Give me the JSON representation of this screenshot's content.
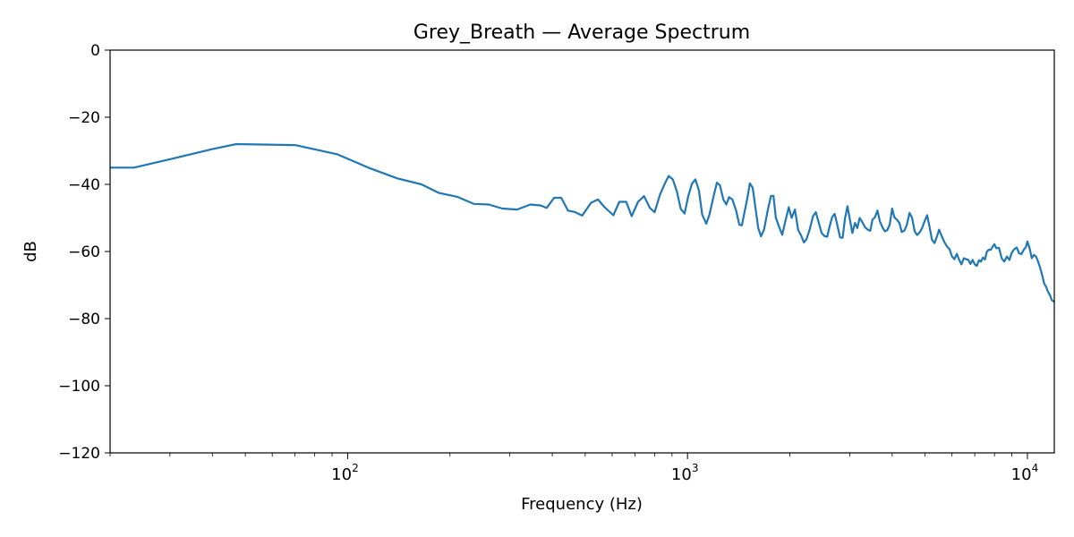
{
  "chart_data": {
    "type": "line",
    "title": "Grey_Breath — Average Spectrum",
    "xlabel": "Frequency (Hz)",
    "ylabel": "dB",
    "xscale": "log",
    "xlim": [
      20,
      12000
    ],
    "ylim": [
      -120,
      0
    ],
    "grid": false,
    "line_color": "#1f77b4",
    "y_ticks": [
      0,
      -20,
      -40,
      -60,
      -80,
      -100,
      -120
    ],
    "y_tick_labels": [
      "0",
      "−20",
      "−40",
      "−60",
      "−80",
      "−100",
      "−120"
    ],
    "x_major_ticks": [
      {
        "value": 100,
        "base": "10",
        "exp": "2"
      },
      {
        "value": 1000,
        "base": "10",
        "exp": "3"
      },
      {
        "value": 10000,
        "base": "10",
        "exp": "4"
      }
    ],
    "series": [
      {
        "name": "Average Spectrum",
        "points": [
          [
            20,
            -35
          ],
          [
            23.5,
            -35
          ],
          [
            30,
            -32.5
          ],
          [
            40,
            -29.5
          ],
          [
            47,
            -28
          ],
          [
            70,
            -28.3
          ],
          [
            93,
            -31
          ],
          [
            115,
            -35
          ],
          [
            140,
            -38.2
          ],
          [
            165,
            -40
          ],
          [
            185,
            -42.5
          ],
          [
            210,
            -43.7
          ],
          [
            235,
            -45.8
          ],
          [
            260,
            -46
          ],
          [
            285,
            -47.2
          ],
          [
            315,
            -47.5
          ],
          [
            345,
            -46
          ],
          [
            370,
            -46.3
          ],
          [
            385,
            -47
          ],
          [
            405,
            -44
          ],
          [
            425,
            -44
          ],
          [
            445,
            -47.8
          ],
          [
            465,
            -48.2
          ],
          [
            490,
            -49.3
          ],
          [
            520,
            -45.5
          ],
          [
            545,
            -44.5
          ],
          [
            570,
            -46.8
          ],
          [
            605,
            -49.2
          ],
          [
            630,
            -45.2
          ],
          [
            660,
            -45.2
          ],
          [
            685,
            -49.5
          ],
          [
            715,
            -45.2
          ],
          [
            745,
            -43.5
          ],
          [
            775,
            -47
          ],
          [
            800,
            -48.3
          ],
          [
            830,
            -43
          ],
          [
            860,
            -39.5
          ],
          [
            880,
            -37.5
          ],
          [
            905,
            -38.5
          ],
          [
            930,
            -42
          ],
          [
            955,
            -47.3
          ],
          [
            980,
            -48.7
          ],
          [
            1005,
            -43.5
          ],
          [
            1030,
            -39.8
          ],
          [
            1055,
            -38.5
          ],
          [
            1080,
            -41.8
          ],
          [
            1105,
            -49
          ],
          [
            1135,
            -51.7
          ],
          [
            1160,
            -49
          ],
          [
            1190,
            -44
          ],
          [
            1220,
            -39.5
          ],
          [
            1245,
            -40.2
          ],
          [
            1275,
            -44.5
          ],
          [
            1300,
            -46
          ],
          [
            1325,
            -43.8
          ],
          [
            1355,
            -44.5
          ],
          [
            1390,
            -47.8
          ],
          [
            1420,
            -52
          ],
          [
            1445,
            -52.2
          ],
          [
            1470,
            -48.5
          ],
          [
            1500,
            -44
          ],
          [
            1525,
            -39.7
          ],
          [
            1555,
            -41
          ],
          [
            1585,
            -47
          ],
          [
            1615,
            -53
          ],
          [
            1645,
            -55.5
          ],
          [
            1680,
            -53.5
          ],
          [
            1720,
            -48
          ],
          [
            1760,
            -43.4
          ],
          [
            1790,
            -43.4
          ],
          [
            1820,
            -50
          ],
          [
            1865,
            -53
          ],
          [
            1900,
            -55
          ],
          [
            1940,
            -51
          ],
          [
            1985,
            -46.8
          ],
          [
            2025,
            -50
          ],
          [
            2070,
            -47.5
          ],
          [
            2115,
            -53.5
          ],
          [
            2160,
            -55.3
          ],
          [
            2200,
            -57.3
          ],
          [
            2240,
            -56.3
          ],
          [
            2290,
            -53.3
          ],
          [
            2340,
            -49.5
          ],
          [
            2385,
            -48.3
          ],
          [
            2430,
            -51.2
          ],
          [
            2480,
            -54.5
          ],
          [
            2530,
            -55.4
          ],
          [
            2575,
            -55.6
          ],
          [
            2620,
            -52.5
          ],
          [
            2665,
            -49.7
          ],
          [
            2710,
            -48.8
          ],
          [
            2755,
            -51.8
          ],
          [
            2810,
            -55.8
          ],
          [
            2860,
            -55.9
          ],
          [
            2905,
            -50.2
          ],
          [
            2955,
            -46.5
          ],
          [
            3005,
            -50.5
          ],
          [
            3055,
            -54.5
          ],
          [
            3110,
            -51.5
          ],
          [
            3160,
            -53
          ],
          [
            3210,
            -50
          ],
          [
            3270,
            -51.3
          ],
          [
            3330,
            -52.8
          ],
          [
            3390,
            -53.5
          ],
          [
            3450,
            -53.8
          ],
          [
            3500,
            -50.5
          ],
          [
            3560,
            -49.8
          ],
          [
            3620,
            -47.8
          ],
          [
            3680,
            -51
          ],
          [
            3750,
            -52.9
          ],
          [
            3810,
            -54
          ],
          [
            3870,
            -53.6
          ],
          [
            3935,
            -52
          ],
          [
            4000,
            -47.2
          ],
          [
            4060,
            -49.8
          ],
          [
            4130,
            -50.5
          ],
          [
            4200,
            -51.5
          ],
          [
            4270,
            -54.2
          ],
          [
            4350,
            -53.7
          ],
          [
            4420,
            -52
          ],
          [
            4500,
            -48.5
          ],
          [
            4580,
            -50
          ],
          [
            4660,
            -54
          ],
          [
            4740,
            -55.1
          ],
          [
            4820,
            -54.3
          ],
          [
            4900,
            -53
          ],
          [
            4980,
            -51
          ],
          [
            5070,
            -49.2
          ],
          [
            5150,
            -52.5
          ],
          [
            5240,
            -56.5
          ],
          [
            5330,
            -57.5
          ],
          [
            5420,
            -55.5
          ],
          [
            5500,
            -53.5
          ],
          [
            5600,
            -55.5
          ],
          [
            5700,
            -57.2
          ],
          [
            5800,
            -58.5
          ],
          [
            5900,
            -59.3
          ],
          [
            6000,
            -61.5
          ],
          [
            6100,
            -62.3
          ],
          [
            6200,
            -60.7
          ],
          [
            6300,
            -62.5
          ],
          [
            6400,
            -63.8
          ],
          [
            6500,
            -62
          ],
          [
            6600,
            -62.3
          ],
          [
            6700,
            -62.5
          ],
          [
            6800,
            -63.7
          ],
          [
            6900,
            -62.5
          ],
          [
            7000,
            -63.8
          ],
          [
            7100,
            -64.3
          ],
          [
            7200,
            -62.6
          ],
          [
            7300,
            -63
          ],
          [
            7400,
            -61.8
          ],
          [
            7500,
            -62.4
          ],
          [
            7600,
            -60
          ],
          [
            7700,
            -59.5
          ],
          [
            7800,
            -59.5
          ],
          [
            7900,
            -58.6
          ],
          [
            8000,
            -57.8
          ],
          [
            8100,
            -59
          ],
          [
            8250,
            -58.9
          ],
          [
            8400,
            -62
          ],
          [
            8550,
            -63
          ],
          [
            8700,
            -61.5
          ],
          [
            8850,
            -62.5
          ],
          [
            9000,
            -60.3
          ],
          [
            9150,
            -59.3
          ],
          [
            9300,
            -58.8
          ],
          [
            9450,
            -60.5
          ],
          [
            9600,
            -60.8
          ],
          [
            9750,
            -59.5
          ],
          [
            9900,
            -58.7
          ],
          [
            10000,
            -57
          ],
          [
            10150,
            -59
          ],
          [
            10300,
            -62
          ],
          [
            10450,
            -61
          ],
          [
            10600,
            -61.5
          ],
          [
            10750,
            -63
          ],
          [
            10900,
            -64.8
          ],
          [
            11050,
            -67
          ],
          [
            11200,
            -69.5
          ],
          [
            11350,
            -70.5
          ],
          [
            11500,
            -72
          ],
          [
            11650,
            -73
          ],
          [
            11800,
            -74.5
          ],
          [
            12000,
            -75
          ]
        ]
      }
    ]
  }
}
